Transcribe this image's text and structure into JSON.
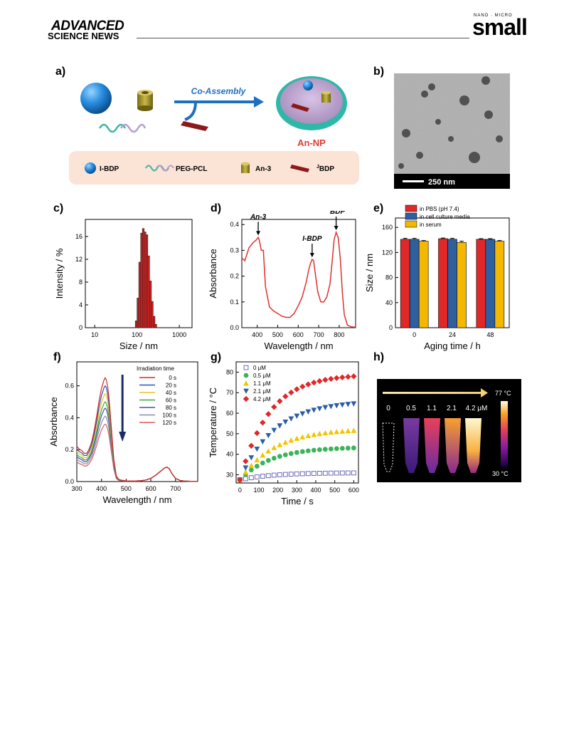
{
  "header": {
    "journal_left_1": "ADVANCED",
    "journal_left_2": "SCIENCE NEWS",
    "journal_right_small": "NANO · MICRO",
    "journal_right_big": "small"
  },
  "panel_labels": {
    "a": "a)",
    "b": "b)",
    "c": "c)",
    "d": "d)",
    "e": "e)",
    "f": "f)",
    "g": "g)",
    "h": "h)"
  },
  "panel_a": {
    "arrow_label": "Co-Assembly",
    "product_label": "An-NP",
    "legend": [
      {
        "label": "I-BDP",
        "icon": "blue-sphere"
      },
      {
        "label": "PEG-PCL",
        "icon": "polymer-coil"
      },
      {
        "label": "An-3",
        "icon": "cylinder"
      },
      {
        "label": "BDP",
        "sup": "J",
        "icon": "red-bar"
      }
    ],
    "colors": {
      "legend_bg": "#fbe3d6",
      "arrow": "#1f6fc0",
      "product_label": "#e23a2e",
      "sphere": "#2a8fe0",
      "cylinder": "#b3a236",
      "bar": "#8b1a1a",
      "shell": "#3cbfb0",
      "core": "#b89cc8"
    }
  },
  "panel_b": {
    "scale_bar": "250 nm"
  },
  "chart_data": [
    {
      "panel": "c",
      "type": "bar",
      "xlabel": "Size / nm",
      "ylabel": "Intensity / %",
      "xscale": "log",
      "xlim": [
        6,
        2000
      ],
      "ylim": [
        0,
        19
      ],
      "xticks": [
        "10",
        "100",
        "1000"
      ],
      "yticks": [
        "0",
        "4",
        "8",
        "12",
        "16"
      ],
      "bins_x": [
        91,
        100,
        110,
        122,
        134,
        148,
        163,
        180,
        198,
        219,
        241,
        266
      ],
      "values": [
        1.2,
        5.2,
        11.5,
        16.6,
        17.4,
        16.8,
        16.3,
        12.6,
        8.2,
        4.6,
        2.0,
        0.6
      ],
      "color": "#d42020"
    },
    {
      "panel": "d",
      "type": "line",
      "xlabel": "Wavelength / nm",
      "ylabel": "Absorbance",
      "xlim": [
        325,
        880
      ],
      "ylim": [
        0,
        0.42
      ],
      "xticks": [
        "400",
        "500",
        "600",
        "700",
        "800"
      ],
      "yticks": [
        "0.0",
        "0.1",
        "0.2",
        "0.3",
        "0.4"
      ],
      "x": [
        325,
        340,
        360,
        380,
        395,
        405,
        410,
        420,
        430,
        440,
        460,
        480,
        500,
        520,
        540,
        560,
        580,
        600,
        620,
        640,
        650,
        660,
        668,
        675,
        685,
        695,
        710,
        725,
        740,
        755,
        765,
        775,
        785,
        795,
        805,
        815,
        825,
        840,
        860,
        880
      ],
      "y": [
        0.27,
        0.26,
        0.31,
        0.33,
        0.34,
        0.35,
        0.34,
        0.3,
        0.3,
        0.16,
        0.08,
        0.065,
        0.055,
        0.045,
        0.04,
        0.04,
        0.055,
        0.085,
        0.12,
        0.18,
        0.22,
        0.25,
        0.265,
        0.26,
        0.2,
        0.14,
        0.1,
        0.1,
        0.12,
        0.17,
        0.25,
        0.34,
        0.37,
        0.35,
        0.27,
        0.14,
        0.05,
        0.01,
        0.003,
        0.002
      ],
      "annotations": [
        {
          "label": "An-3",
          "x": 405,
          "y": 0.35
        },
        {
          "label": "I-BDP",
          "x": 668,
          "y": 0.265
        },
        {
          "label": "BDP",
          "sup": "J",
          "x": 785,
          "y": 0.37
        }
      ],
      "color": "#e03030"
    },
    {
      "panel": "e",
      "type": "bar",
      "xlabel": "Aging time / h",
      "ylabel": "Size / nm",
      "ylim": [
        0,
        175
      ],
      "yticks": [
        "0",
        "40",
        "80",
        "120",
        "160"
      ],
      "categories": [
        "0",
        "24",
        "48"
      ],
      "series": [
        {
          "name": "in PBS (pH 7.4)",
          "values": [
            141,
            142,
            141
          ],
          "err": [
            1.5,
            1,
            1
          ],
          "color": "#e02828"
        },
        {
          "name": "in cell culture media",
          "values": [
            141,
            141,
            141
          ],
          "err": [
            1.5,
            1.5,
            1
          ],
          "color": "#2f5f9e"
        },
        {
          "name": "in serum",
          "values": [
            138,
            136,
            138
          ],
          "err": [
            1,
            2,
            1
          ],
          "color": "#f5b800"
        }
      ],
      "legend": "top"
    },
    {
      "panel": "f",
      "type": "line",
      "xlabel": "Wavelength / nm",
      "ylabel": "Absorbance",
      "xlim": [
        300,
        790
      ],
      "ylim": [
        0,
        0.75
      ],
      "xticks": [
        "300",
        "400",
        "500",
        "600",
        "700"
      ],
      "yticks": [
        "0.0",
        "0.2",
        "0.4",
        "0.6"
      ],
      "legend_title": "Irradiation time",
      "shape_x": [
        300,
        310,
        320,
        330,
        340,
        350,
        360,
        370,
        380,
        390,
        400,
        410,
        415,
        420,
        425,
        430,
        440,
        450,
        460,
        470,
        480,
        500,
        520,
        540,
        560,
        580,
        600,
        620,
        640,
        655,
        665,
        675,
        685,
        700,
        720,
        740,
        760,
        790
      ],
      "shape_y": [
        0.25,
        0.23,
        0.22,
        0.2,
        0.2,
        0.23,
        0.28,
        0.36,
        0.46,
        0.57,
        0.66,
        0.72,
        0.735,
        0.72,
        0.67,
        0.6,
        0.38,
        0.16,
        0.04,
        0.015,
        0.01,
        0.005,
        0.004,
        0.004,
        0.005,
        0.01,
        0.02,
        0.04,
        0.065,
        0.085,
        0.09,
        0.08,
        0.05,
        0.02,
        0.006,
        0.003,
        0.002,
        0.002
      ],
      "series": [
        {
          "name": "0 s",
          "peak": 0.65,
          "color": "#d62828"
        },
        {
          "name": "20 s",
          "peak": 0.6,
          "color": "#2a55a5"
        },
        {
          "name": "40 s",
          "peak": 0.55,
          "color": "#f0c020"
        },
        {
          "name": "60 s",
          "peak": 0.5,
          "color": "#3aa84a"
        },
        {
          "name": "80 s",
          "peak": 0.46,
          "color": "#4b4fa8"
        },
        {
          "name": "100 s",
          "peak": 0.41,
          "color": "#8a8ab0"
        },
        {
          "name": "120 s",
          "peak": 0.36,
          "color": "#e05a5a"
        }
      ]
    },
    {
      "panel": "g",
      "type": "scatter",
      "xlabel": "Time / s",
      "ylabel": "Temperature / °C",
      "xlim": [
        -20,
        625
      ],
      "ylim": [
        26,
        85
      ],
      "xticks": [
        "0",
        "100",
        "200",
        "300",
        "400",
        "500",
        "600"
      ],
      "yticks": [
        "30",
        "40",
        "50",
        "60",
        "70",
        "80"
      ],
      "x": [
        0,
        30,
        60,
        90,
        120,
        150,
        180,
        210,
        240,
        270,
        300,
        330,
        360,
        390,
        420,
        450,
        480,
        510,
        540,
        570,
        600
      ],
      "series": [
        {
          "name": "0 μM",
          "marker": "square-open",
          "color": "#6a6ab8",
          "plateau": 31,
          "k": 0.006
        },
        {
          "name": "0.5 μM",
          "marker": "circle",
          "color": "#3cb35a",
          "plateau": 43.5,
          "k": 0.006
        },
        {
          "name": "1.1 μM",
          "marker": "triangle-up",
          "color": "#f2c500",
          "plateau": 52.5,
          "k": 0.0055
        },
        {
          "name": "2.1 μM",
          "marker": "triangle-down",
          "color": "#2a5ea8",
          "plateau": 66,
          "k": 0.0055
        },
        {
          "name": "4.2 μM",
          "marker": "diamond",
          "color": "#e0282a",
          "plateau": 79,
          "k": 0.0065
        }
      ],
      "start": 27.5
    }
  ],
  "panel_h": {
    "max_label": "77 °C",
    "min_label": "30 °C",
    "concentrations": [
      "0",
      "0.5",
      "1.1",
      "2.1",
      "4.2 μM"
    ]
  }
}
